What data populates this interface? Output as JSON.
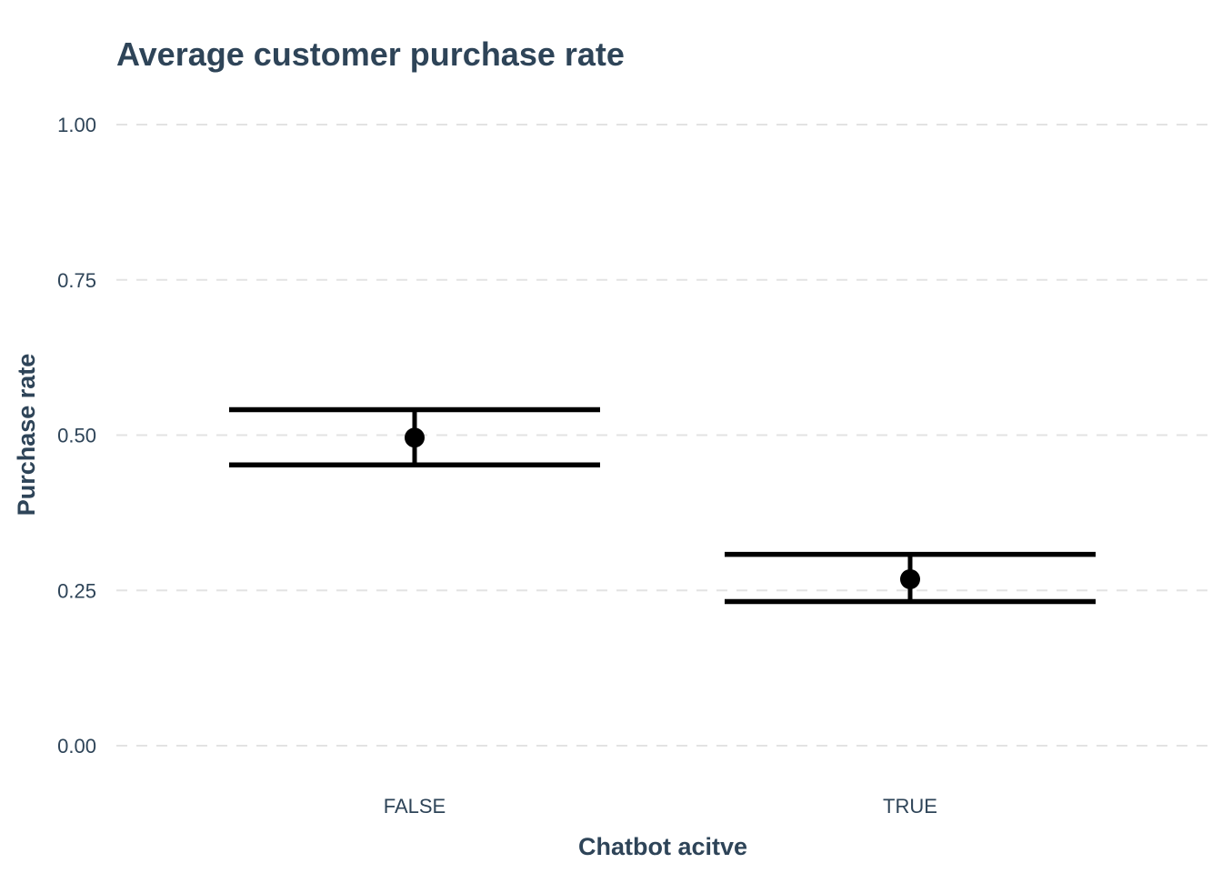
{
  "chart_data": {
    "type": "scatter",
    "title": "Average customer purchase rate",
    "xlabel": "Chatbot acitve",
    "ylabel": "Purchase rate",
    "categories": [
      "FALSE",
      "TRUE"
    ],
    "values": [
      0.496,
      0.268
    ],
    "ci_lower": [
      0.452,
      0.232
    ],
    "ci_upper": [
      0.541,
      0.308
    ],
    "ylim": [
      0,
      1
    ],
    "yticks": [
      "0.00",
      "0.25",
      "0.50",
      "0.75",
      "1.00"
    ],
    "ytick_values": [
      0,
      0.25,
      0.5,
      0.75,
      1
    ],
    "grid": "horizontal dashed",
    "legend": "none",
    "colors": {
      "title": "#2e4458",
      "marks": "#000000",
      "grid": "#e3e3e3"
    }
  }
}
